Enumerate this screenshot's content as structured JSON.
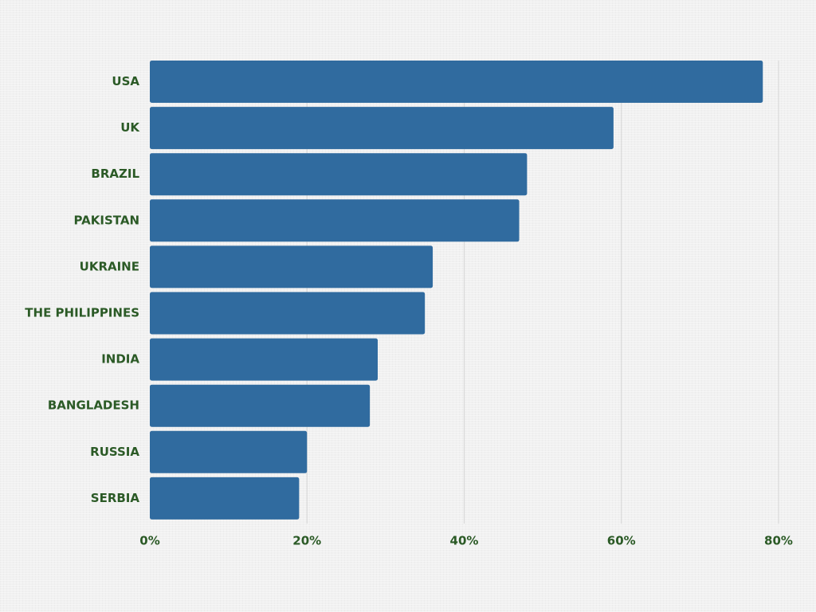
{
  "chart_data": {
    "type": "bar",
    "orientation": "horizontal",
    "title": "",
    "xlabel": "",
    "ylabel": "",
    "categories": [
      "USA",
      "UK",
      "BRAZIL",
      "PAKISTAN",
      "UKRAINE",
      "THE PHILIPPINES",
      "INDIA",
      "BANGLADESH",
      "RUSSIA",
      "SERBIA"
    ],
    "values": [
      78,
      59,
      48,
      47,
      36,
      35,
      29,
      28,
      20,
      19
    ],
    "xlim": [
      0,
      80
    ],
    "x_ticks": [
      0,
      20,
      40,
      60,
      80
    ],
    "x_tick_labels": [
      "0%",
      "20%",
      "40%",
      "60%",
      "80%"
    ],
    "grid": true,
    "legend": "none",
    "colors": {
      "bar": "#306b9f",
      "label": "#2b5a26",
      "grid": "#d6d6d6"
    }
  }
}
